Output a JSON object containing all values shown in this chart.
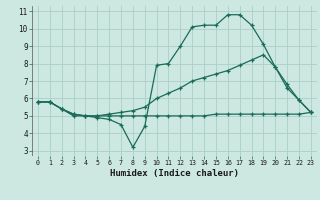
{
  "xlabel": "Humidex (Indice chaleur)",
  "bg_color": "#cde8e0",
  "grid_color": "#aacfc7",
  "line_color": "#1a6b5a",
  "xlim": [
    -0.5,
    23.5
  ],
  "ylim": [
    2.7,
    11.3
  ],
  "xticks": [
    0,
    1,
    2,
    3,
    4,
    5,
    6,
    7,
    8,
    9,
    10,
    11,
    12,
    13,
    14,
    15,
    16,
    17,
    18,
    19,
    20,
    21,
    22,
    23
  ],
  "yticks": [
    3,
    4,
    5,
    6,
    7,
    8,
    9,
    10,
    11
  ],
  "line1_x": [
    0,
    1,
    2,
    3,
    4,
    5,
    6,
    7,
    8,
    9,
    10,
    11,
    12,
    13,
    14,
    15,
    16,
    17,
    18,
    19,
    20,
    21,
    22,
    23
  ],
  "line1_y": [
    5.8,
    5.8,
    5.4,
    5.0,
    5.0,
    4.9,
    4.8,
    4.5,
    3.2,
    4.4,
    7.9,
    8.0,
    9.0,
    10.1,
    10.2,
    10.2,
    10.8,
    10.8,
    10.2,
    9.1,
    7.8,
    6.8,
    5.9,
    5.2
  ],
  "line2_x": [
    0,
    1,
    2,
    3,
    4,
    5,
    6,
    7,
    8,
    9,
    10,
    11,
    12,
    13,
    14,
    15,
    16,
    17,
    18,
    19,
    20,
    21,
    22,
    23
  ],
  "line2_y": [
    5.8,
    5.8,
    5.4,
    5.1,
    5.0,
    5.0,
    5.0,
    5.0,
    5.0,
    5.0,
    5.0,
    5.0,
    5.0,
    5.0,
    5.0,
    5.1,
    5.1,
    5.1,
    5.1,
    5.1,
    5.1,
    5.1,
    5.1,
    5.2
  ],
  "line3_x": [
    0,
    1,
    2,
    3,
    4,
    5,
    6,
    7,
    8,
    9,
    10,
    11,
    12,
    13,
    14,
    15,
    16,
    17,
    18,
    19,
    20,
    21,
    22,
    23
  ],
  "line3_y": [
    5.8,
    5.8,
    5.4,
    5.1,
    5.0,
    5.0,
    5.1,
    5.2,
    5.3,
    5.5,
    6.0,
    6.3,
    6.6,
    7.0,
    7.2,
    7.4,
    7.6,
    7.9,
    8.2,
    8.5,
    7.8,
    6.6,
    5.9,
    5.2
  ]
}
